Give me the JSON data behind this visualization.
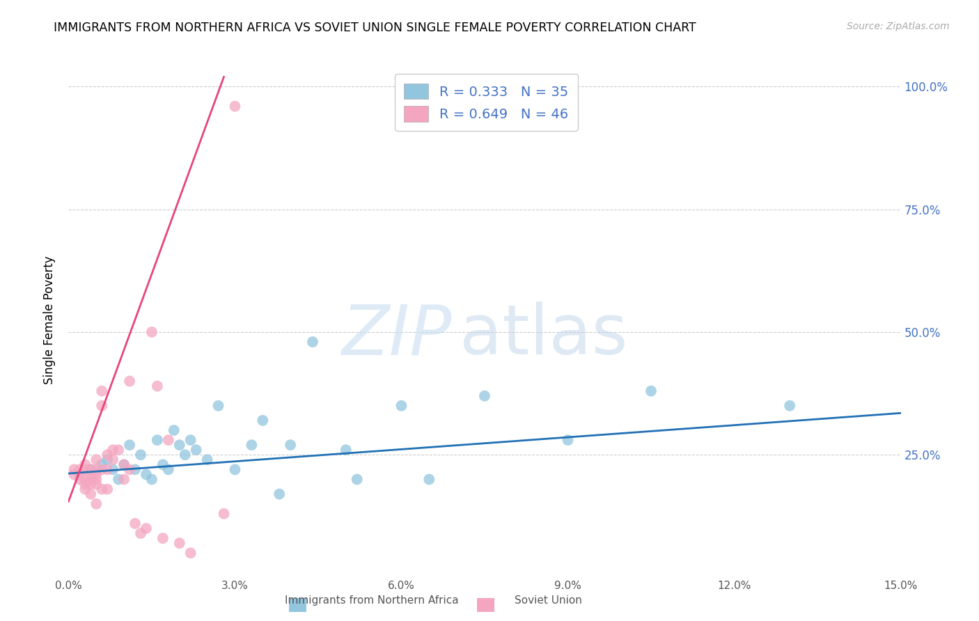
{
  "title": "IMMIGRANTS FROM NORTHERN AFRICA VS SOVIET UNION SINGLE FEMALE POVERTY CORRELATION CHART",
  "source": "Source: ZipAtlas.com",
  "ylabel": "Single Female Poverty",
  "xlim": [
    0.0,
    0.15
  ],
  "ylim": [
    0.0,
    1.05
  ],
  "legend_blue_r": "R = 0.333",
  "legend_blue_n": "N = 35",
  "legend_pink_r": "R = 0.649",
  "legend_pink_n": "N = 46",
  "blue_color": "#92c5de",
  "pink_color": "#f4a6c0",
  "blue_line_color": "#2171b5",
  "pink_line_color": "#e8447a",
  "xticks": [
    0.0,
    0.03,
    0.06,
    0.09,
    0.12,
    0.15
  ],
  "xticklabels": [
    "0.0%",
    "3.0%",
    "6.0%",
    "9.0%",
    "12.0%",
    "15.0%"
  ],
  "yticks": [
    0.0,
    0.25,
    0.5,
    0.75,
    1.0
  ],
  "right_yticklabels": [
    "",
    "25.0%",
    "50.0%",
    "75.0%",
    "100.0%"
  ],
  "blue_scatter_x": [
    0.004,
    0.006,
    0.007,
    0.008,
    0.009,
    0.01,
    0.011,
    0.012,
    0.013,
    0.014,
    0.015,
    0.016,
    0.017,
    0.018,
    0.019,
    0.02,
    0.021,
    0.022,
    0.023,
    0.025,
    0.027,
    0.03,
    0.033,
    0.035,
    0.038,
    0.04,
    0.044,
    0.05,
    0.052,
    0.06,
    0.065,
    0.075,
    0.09,
    0.105,
    0.13
  ],
  "blue_scatter_y": [
    0.22,
    0.23,
    0.24,
    0.22,
    0.2,
    0.23,
    0.27,
    0.22,
    0.25,
    0.21,
    0.2,
    0.28,
    0.23,
    0.22,
    0.3,
    0.27,
    0.25,
    0.28,
    0.26,
    0.24,
    0.35,
    0.22,
    0.27,
    0.32,
    0.17,
    0.27,
    0.48,
    0.26,
    0.2,
    0.35,
    0.2,
    0.37,
    0.28,
    0.38,
    0.35
  ],
  "blue_line_x": [
    0.0,
    0.15
  ],
  "blue_line_y": [
    0.212,
    0.335
  ],
  "pink_scatter_x": [
    0.001,
    0.001,
    0.002,
    0.002,
    0.002,
    0.003,
    0.003,
    0.003,
    0.003,
    0.003,
    0.004,
    0.004,
    0.004,
    0.004,
    0.004,
    0.005,
    0.005,
    0.005,
    0.005,
    0.005,
    0.005,
    0.006,
    0.006,
    0.006,
    0.006,
    0.007,
    0.007,
    0.007,
    0.008,
    0.008,
    0.009,
    0.01,
    0.01,
    0.011,
    0.011,
    0.012,
    0.013,
    0.014,
    0.015,
    0.016,
    0.017,
    0.018,
    0.02,
    0.022,
    0.028,
    0.03
  ],
  "pink_scatter_y": [
    0.22,
    0.21,
    0.22,
    0.21,
    0.2,
    0.23,
    0.22,
    0.2,
    0.19,
    0.18,
    0.22,
    0.21,
    0.2,
    0.19,
    0.17,
    0.24,
    0.22,
    0.21,
    0.2,
    0.19,
    0.15,
    0.38,
    0.35,
    0.22,
    0.18,
    0.25,
    0.22,
    0.18,
    0.26,
    0.24,
    0.26,
    0.23,
    0.2,
    0.4,
    0.22,
    0.11,
    0.09,
    0.1,
    0.5,
    0.39,
    0.08,
    0.28,
    0.07,
    0.05,
    0.13,
    0.96
  ],
  "pink_line_x": [
    0.0,
    0.028
  ],
  "pink_line_y": [
    0.155,
    1.02
  ]
}
